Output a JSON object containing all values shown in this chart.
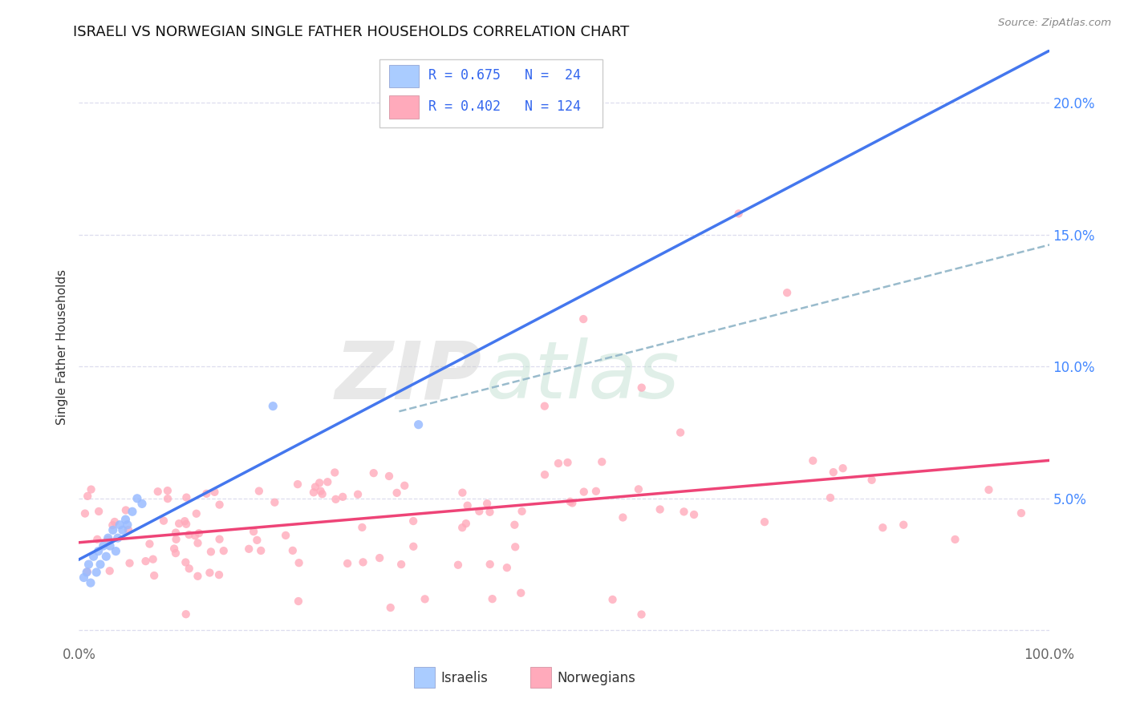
{
  "title": "ISRAELI VS NORWEGIAN SINGLE FATHER HOUSEHOLDS CORRELATION CHART",
  "source": "Source: ZipAtlas.com",
  "ylabel": "Single Father Households",
  "watermark_zip": "ZIP",
  "watermark_atlas": "atlas",
  "xlim": [
    0,
    1.0
  ],
  "ylim": [
    -0.005,
    0.22
  ],
  "xtick_positions": [
    0.0,
    0.25,
    0.5,
    0.75,
    1.0
  ],
  "xtick_labels": [
    "0.0%",
    "",
    "",
    "",
    "100.0%"
  ],
  "ytick_positions": [
    0.0,
    0.05,
    0.1,
    0.15,
    0.2
  ],
  "ytick_labels": [
    "",
    "5.0%",
    "10.0%",
    "15.0%",
    "20.0%"
  ],
  "background_color": "#ffffff",
  "grid_color": "#ddddee",
  "israeli_color": "#99bbff",
  "israeli_line_color": "#4477ee",
  "norwegian_color": "#ffaabb",
  "norwegian_line_color": "#ee4477",
  "dash_color": "#aaccdd",
  "legend_isr_R": "0.675",
  "legend_isr_N": "24",
  "legend_nor_R": "0.402",
  "legend_nor_N": "124",
  "ytick_color": "#4488ff",
  "xtick_color": "#666666"
}
